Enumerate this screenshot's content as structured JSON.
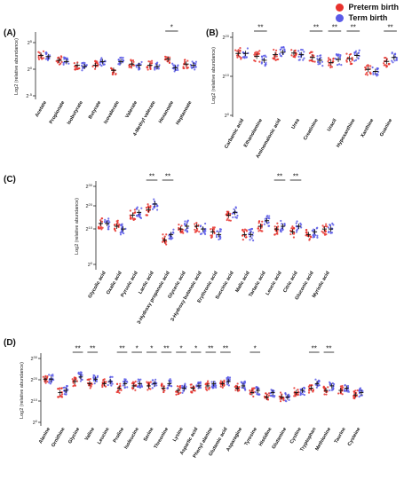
{
  "legend": {
    "preterm_label": "Preterm birth",
    "term_label": "Term birth",
    "preterm_color": "#e8322d",
    "term_color": "#5b5be8"
  },
  "chart_data": [
    {
      "panel": "(A)",
      "type": "scatter",
      "ylabel": "Log2 (relative abundance)",
      "yticks": [
        "2^5",
        "2^0",
        "2^-5"
      ],
      "yscale": "log2",
      "categories": [
        "Acetate",
        "Propionate",
        "Isobutyrate",
        "Butyrate",
        "Isovalerate",
        "Valerate",
        "4-Methyl valerate",
        "Hexanoate",
        "Heptanoate"
      ],
      "series": [
        {
          "name": "Preterm birth",
          "values": [
            1.8,
            1.0,
            0.2,
            0.2,
            -0.6,
            0.4,
            0.2,
            1.2,
            0.4
          ]
        },
        {
          "name": "Term birth",
          "values": [
            1.6,
            0.8,
            0.0,
            0.8,
            0.8,
            0.2,
            0.0,
            -0.2,
            0.2
          ]
        }
      ],
      "significance": [
        "",
        "",
        "",
        "",
        "",
        "",
        "",
        "*",
        ""
      ]
    },
    {
      "panel": "(B)",
      "type": "scatter",
      "ylabel": "Log2 (relative abundance)",
      "yticks": [
        "2^20",
        "2^10",
        "2^0"
      ],
      "yscale": "log2",
      "categories": [
        "Carbamic acid",
        "Ethanolamine",
        "Aminomalonic acid",
        "Urea",
        "Creatinine",
        "Uracil",
        "Hypoxanthine",
        "Xanthine",
        "Guanine"
      ],
      "series": [
        {
          "name": "Preterm birth",
          "values": [
            15.5,
            14.8,
            15.2,
            15.6,
            14.5,
            13.2,
            14.2,
            11.5,
            13.5
          ]
        },
        {
          "name": "Term birth",
          "values": [
            15.5,
            13.8,
            15.8,
            15.2,
            13.8,
            14.0,
            15.0,
            11.0,
            14.5
          ]
        }
      ],
      "significance": [
        "",
        "**",
        "",
        "",
        "**",
        "**",
        "**",
        "",
        "**"
      ]
    },
    {
      "panel": "(C)",
      "type": "scatter",
      "ylabel": "Log2 (relative abundance)",
      "yticks": [
        "2^30",
        "2^20",
        "2^10",
        "2^0"
      ],
      "yscale": "log2",
      "categories": [
        "Glycolic acid",
        "Oxalic acid",
        "Pyruvic acid",
        "Lactic acid",
        "3-Hydroxy propanoic acid",
        "Glyceric acid",
        "3-Hydroxy butanoic acid",
        "Erythronic acid",
        "Succinic acid",
        "Malic acid",
        "Tartaric acid",
        "Leucic acid",
        "Citric acid",
        "Gluconic acid",
        "Myristic acid"
      ],
      "series": [
        {
          "name": "Preterm birth",
          "values": [
            16,
            15,
            19,
            21,
            10,
            14,
            15,
            13,
            19,
            12,
            15,
            14,
            13,
            12,
            14
          ]
        },
        {
          "name": "Term birth",
          "values": [
            16,
            14,
            20,
            23,
            12,
            15,
            14,
            12,
            20,
            12,
            17,
            15,
            15,
            13,
            14
          ]
        }
      ],
      "significance": [
        "",
        "",
        "",
        "**",
        "**",
        "",
        "",
        "",
        "",
        "",
        "",
        "**",
        "**",
        "",
        ""
      ]
    },
    {
      "panel": "(D)",
      "type": "scatter",
      "ylabel": "Log2 (relative abundance)",
      "yticks": [
        "2^30",
        "2^20",
        "2^10",
        "2^0"
      ],
      "yscale": "log2",
      "categories": [
        "Alanine",
        "Ornithine",
        "Glycine",
        "Valine",
        "Leucine",
        "Proline",
        "Isoleucine",
        "Serine",
        "Threonine",
        "Lysine",
        "Aspartic acid",
        "Phenyl alanine",
        "Glutamic acid",
        "Asparagine",
        "Tyrosine",
        "Histidine",
        "Glutamine",
        "Cystine",
        "Tryptophan",
        "Methionine",
        "Taurine",
        "Cysteine"
      ],
      "series": [
        {
          "name": "Preterm birth",
          "values": [
            20,
            14,
            19,
            18,
            18,
            16,
            17,
            17,
            16,
            15,
            16,
            17,
            18,
            16,
            14,
            12,
            12,
            14,
            16,
            15,
            15,
            13
          ]
        },
        {
          "name": "Term birth",
          "values": [
            20,
            15,
            21,
            20,
            19,
            18,
            18,
            18,
            18,
            16,
            17,
            18,
            19,
            17,
            15,
            14,
            12,
            15,
            18,
            17,
            16,
            14
          ]
        }
      ],
      "significance": [
        "",
        "",
        "**",
        "**",
        "",
        "**",
        "*",
        "*",
        "**",
        "*",
        "*",
        "**",
        "**",
        "",
        "*",
        "",
        "",
        "",
        "**",
        "**",
        "",
        ""
      ]
    }
  ]
}
